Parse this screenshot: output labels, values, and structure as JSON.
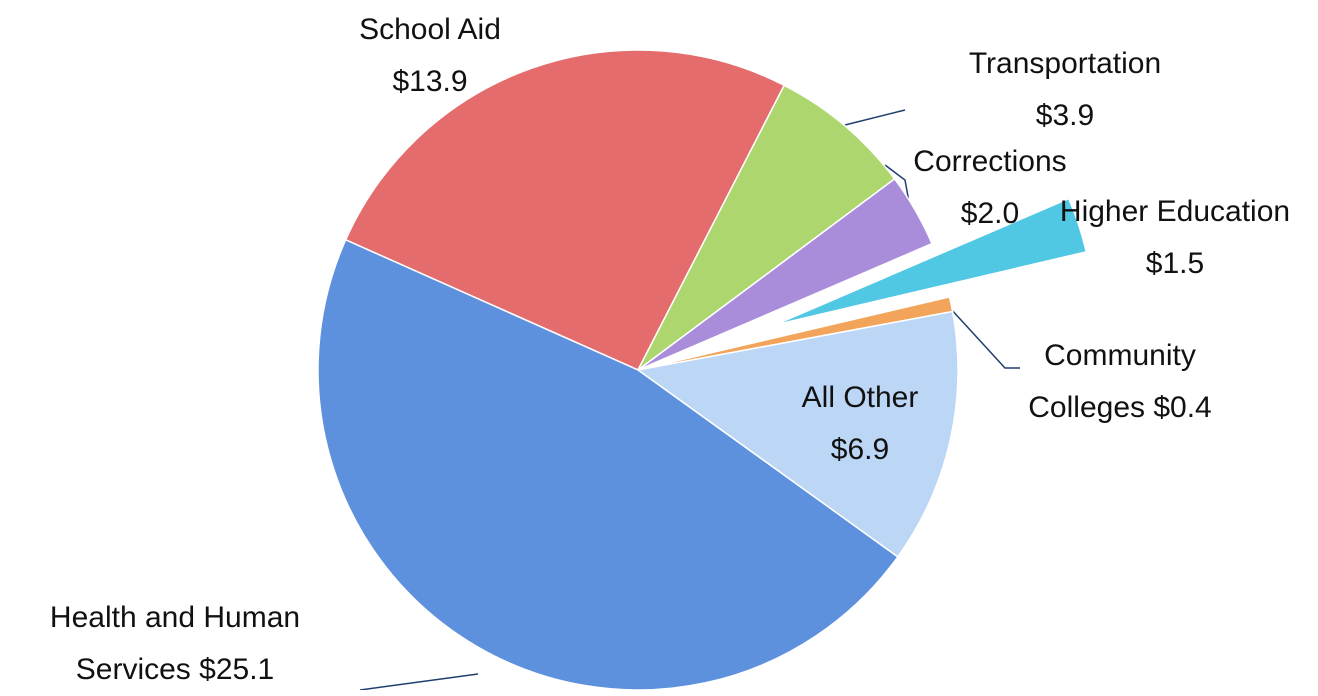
{
  "chart_data": {
    "type": "pie",
    "categories": [
      "School Aid",
      "Transportation",
      "Corrections",
      "Higher Education",
      "Community Colleges",
      "All Other",
      "Health and Human Services"
    ],
    "values": [
      13.9,
      3.9,
      2.0,
      1.5,
      0.4,
      6.9,
      25.1
    ],
    "value_labels": [
      "$13.9",
      "$3.9",
      "$2.0",
      "$1.5",
      "$0.4",
      "$6.9",
      "$25.1"
    ],
    "colors": [
      "#e46c6c",
      "#aed66e",
      "#a98ddb",
      "#50c8e4",
      "#f2a55a",
      "#bcd6f6",
      "#5d91de"
    ]
  }
}
